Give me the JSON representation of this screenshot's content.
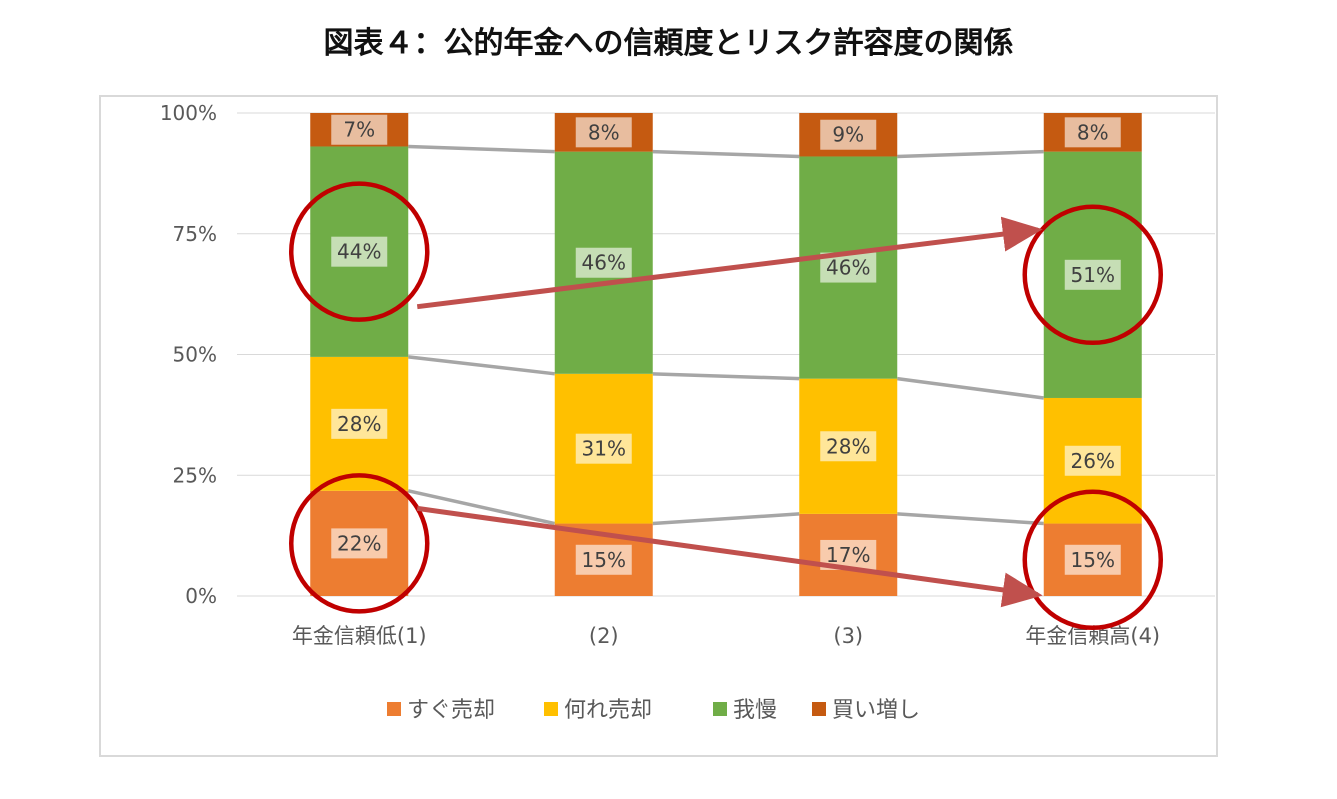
{
  "title": "図表４：公的年金への信頼度とリスク許容度の関係",
  "chart_data": {
    "type": "bar",
    "stacked": "percent",
    "categories": [
      "年金信頼低(1)",
      "(2)",
      "(3)",
      "年金信頼高(4)"
    ],
    "series": [
      {
        "name": "すぐ売却",
        "color": "#ED7D31",
        "values": [
          22,
          15,
          17,
          15
        ]
      },
      {
        "name": "何れ売却",
        "color": "#FFC000",
        "values": [
          28,
          31,
          28,
          26
        ]
      },
      {
        "name": "我慢",
        "color": "#70AD47",
        "values": [
          44,
          46,
          46,
          51
        ]
      },
      {
        "name": "買い増し",
        "color": "#C55A11",
        "values": [
          7,
          8,
          9,
          8
        ]
      }
    ],
    "data_labels": [
      [
        "22%",
        "15%",
        "17%",
        "15%"
      ],
      [
        "28%",
        "31%",
        "28%",
        "26%"
      ],
      [
        "44%",
        "46%",
        "46%",
        "51%"
      ],
      [
        "7%",
        "8%",
        "9%",
        "8%"
      ]
    ],
    "y_ticks": [
      "0%",
      "25%",
      "50%",
      "75%",
      "100%"
    ],
    "ylim": [
      0,
      100
    ],
    "grid": true,
    "series_lines": true,
    "legend_position": "bottom",
    "annotations": {
      "circles": "around the すぐ売却 and 我慢 segments of the first and last bars",
      "arrows": "from first bar to last bar for すぐ売却 (down) and 我慢 (up)",
      "annotation_color": "#C00000",
      "arrow_color": "#C0504D"
    }
  }
}
